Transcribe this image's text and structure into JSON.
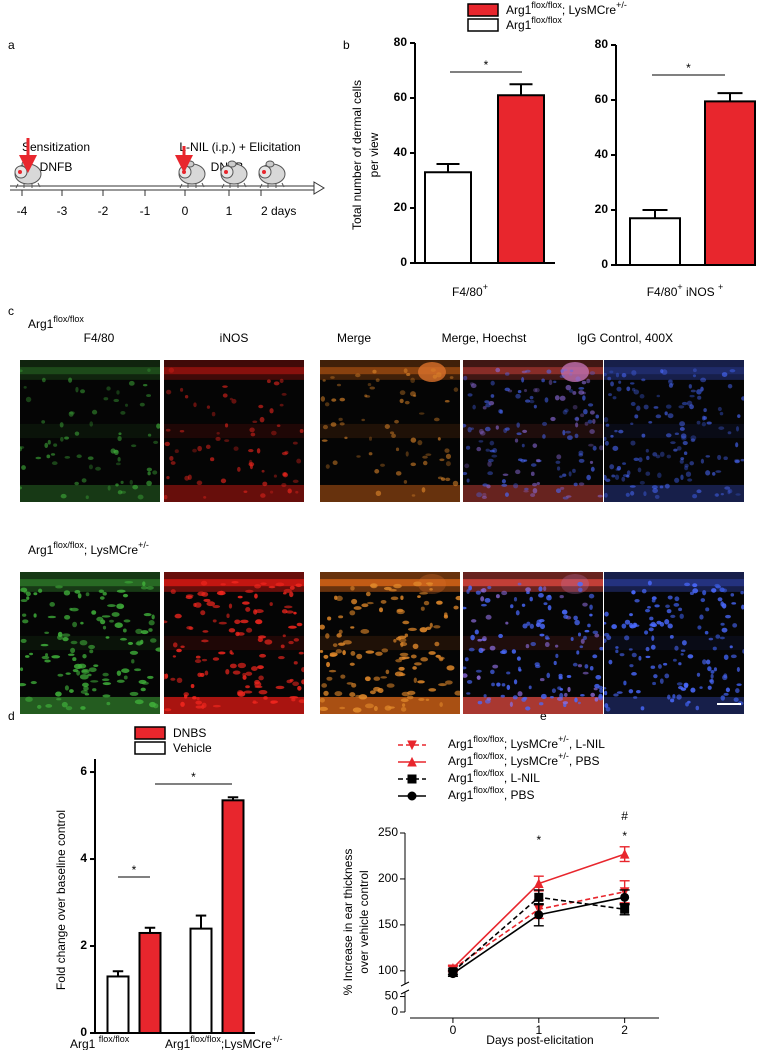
{
  "panel_labels": [
    "a",
    "b",
    "c",
    "d",
    "e"
  ],
  "timeline": {
    "events": [
      {
        "label": "Sensitization",
        "agent": "DNFB"
      },
      {
        "label": "L-NIL (i.p.) + Elicitation",
        "agent": "DNFB"
      }
    ],
    "ticks": [
      "-4",
      "-3",
      "-2",
      "-1",
      "0",
      "1",
      "2 days"
    ]
  },
  "micrographs": {
    "rows": [
      {
        "label": [
          "Arg1",
          "flox/flox"
        ]
      },
      {
        "label": [
          "Arg1",
          "flox/flox",
          "; LysMCre",
          "+/-"
        ]
      }
    ],
    "columns": [
      "F4/80",
      "iNOS",
      "Merge",
      "Merge, Hoechst",
      "IgG Control, 400X"
    ]
  },
  "chart_data": [
    {
      "type": "bar",
      "ylabel": [
        "Total number of dermal cells",
        "per view"
      ],
      "xlabel": [
        "F4/80",
        "+"
      ],
      "series": [
        {
          "name": [
            "Arg1",
            "flox/flox"
          ],
          "color": "#ffffff",
          "values": [
            33
          ],
          "errors": [
            3
          ]
        },
        {
          "name": [
            "Arg1",
            "flox/flox",
            "; LysMCre",
            "+/-"
          ],
          "color": "#e8262d",
          "values": [
            61
          ],
          "errors": [
            4
          ]
        }
      ],
      "legend_colors": [
        "#000000",
        "#e8262d"
      ],
      "ylim": [
        0,
        80
      ],
      "yticks": [
        0,
        20,
        40,
        60,
        80
      ],
      "annotations": [
        "*"
      ]
    },
    {
      "type": "bar",
      "xlabel": [
        "F4/80",
        "+",
        " iNOS ",
        "+"
      ],
      "series": [
        {
          "color": "#ffffff",
          "values": [
            17
          ],
          "errors": [
            3
          ]
        },
        {
          "color": "#e8262d",
          "values": [
            59.5
          ],
          "errors": [
            3
          ]
        }
      ],
      "ylim": [
        0,
        80
      ],
      "yticks": [
        0,
        20,
        40,
        60,
        80
      ],
      "annotations": [
        "*"
      ]
    },
    {
      "type": "bar",
      "ylabel": [
        "Fold change over baseline control"
      ],
      "categories": [
        [
          "Arg1 ",
          "flox/flox"
        ],
        [
          "Arg1",
          "flox/flox",
          ";LysMCre",
          "+/-"
        ]
      ],
      "category_colors": [
        "#000000",
        "#e8262d"
      ],
      "series": [
        {
          "name": "Vehicle",
          "color": "#ffffff",
          "values": [
            1.3,
            2.4
          ],
          "errors": [
            0.12,
            0.3
          ]
        },
        {
          "name": "DNBS",
          "color": "#e8262d",
          "values": [
            2.3,
            5.35
          ],
          "errors": [
            0.12,
            0.07
          ]
        }
      ],
      "ylim": [
        0,
        6.3
      ],
      "yticks": [
        0,
        2,
        4,
        6
      ],
      "annotations": [
        "*",
        "*"
      ]
    },
    {
      "type": "line",
      "ylabel": [
        "% Increase in ear thickness",
        "over vehicle control"
      ],
      "xlabel": "Days post-elicitation",
      "x": [
        0,
        1,
        2
      ],
      "xlim": [
        -0.5,
        2.4
      ],
      "xticks": [
        0,
        1,
        2
      ],
      "ylim": [
        0,
        250
      ],
      "yticks": [
        0,
        50,
        100,
        150,
        200,
        250
      ],
      "axis_break": [
        55,
        90
      ],
      "series": [
        {
          "name": [
            "Arg1",
            "flox/flox",
            "; LysMCre",
            "+/-",
            ", L-NIL"
          ],
          "color": "#e8262d",
          "dashed": true,
          "marker": "triangle-down",
          "values": [
            102,
            167,
            186
          ],
          "errors": [
            3,
            10,
            12
          ]
        },
        {
          "name": [
            "Arg1",
            "flox/flox",
            "; LysMCre",
            "+/-",
            ", PBS"
          ],
          "color": "#e8262d",
          "dashed": false,
          "marker": "triangle-up",
          "values": [
            103,
            195,
            227
          ],
          "errors": [
            3,
            8,
            8
          ]
        },
        {
          "name": [
            "Arg1",
            "flox/flox",
            ", L-NIL"
          ],
          "color": "#000000",
          "dashed": true,
          "marker": "square",
          "values": [
            99,
            180,
            167
          ],
          "errors": [
            3,
            8,
            6
          ]
        },
        {
          "name": [
            "Arg1",
            "flox/flox",
            ", PBS"
          ],
          "color": "#000000",
          "dashed": false,
          "marker": "circle",
          "values": [
            97,
            161,
            180
          ],
          "errors": [
            3,
            12,
            8
          ]
        }
      ],
      "annotations": [
        "*",
        "#",
        "*"
      ]
    }
  ]
}
